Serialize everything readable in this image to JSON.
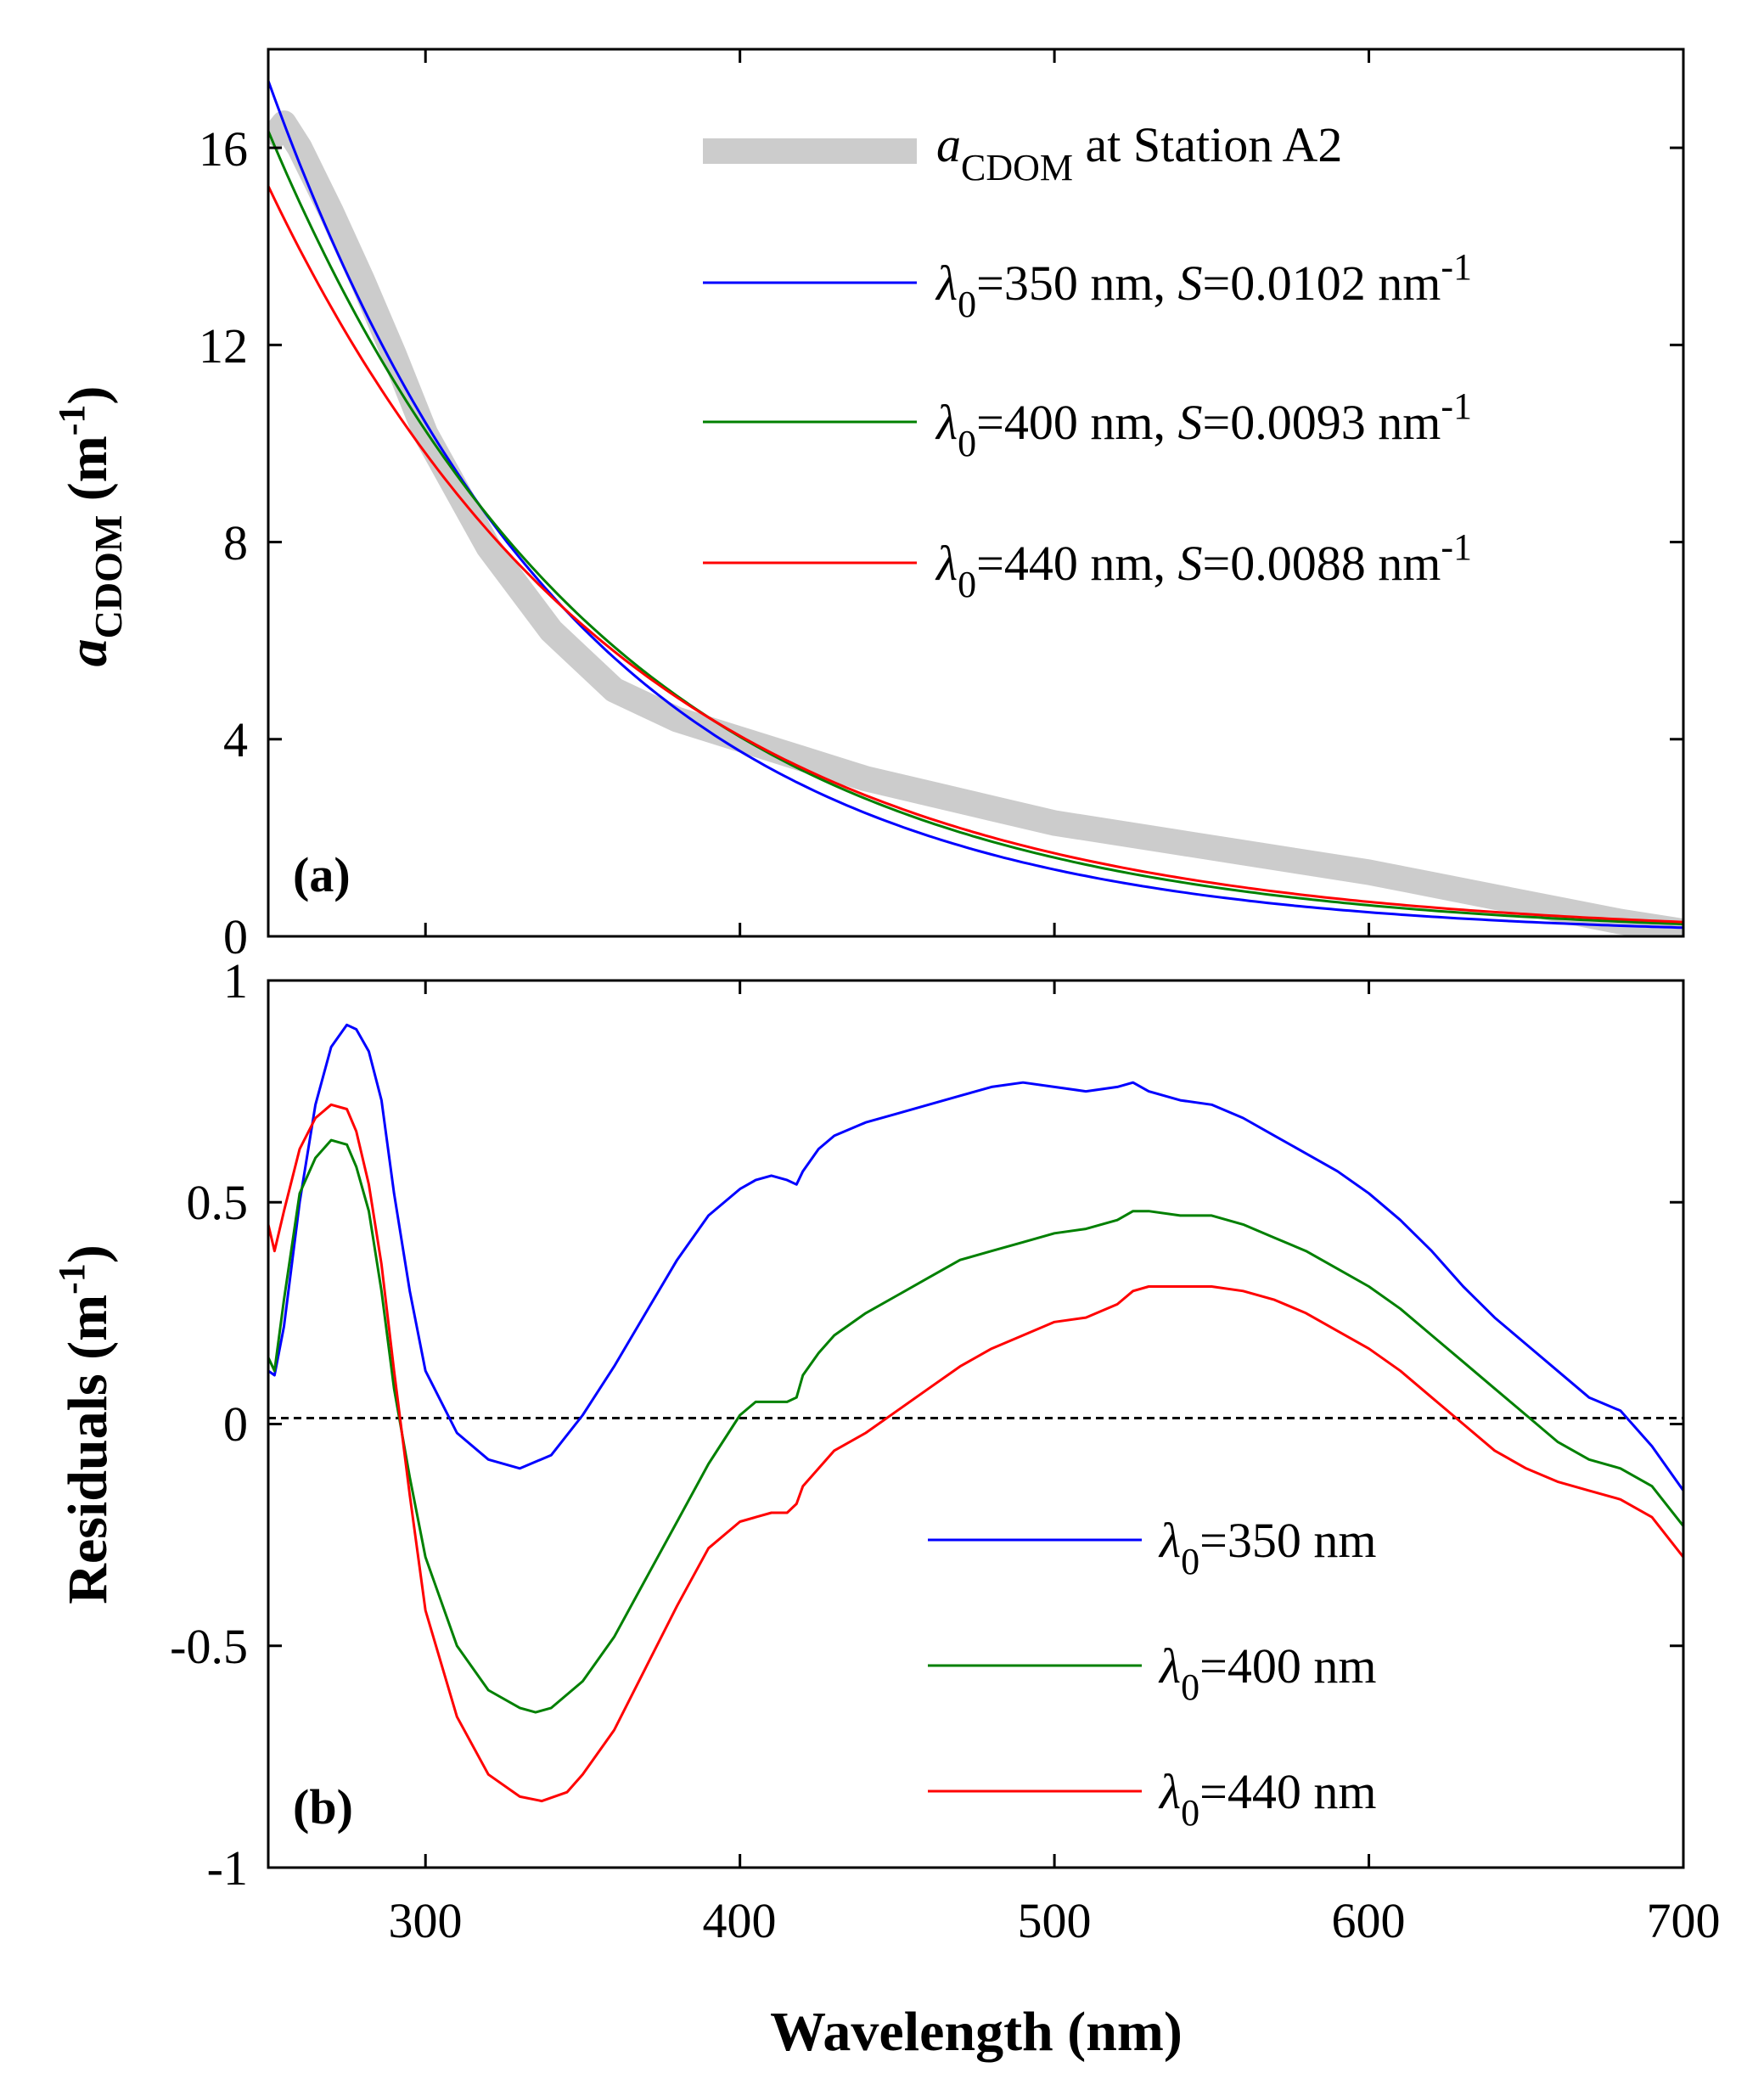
{
  "chart_data": [
    {
      "type": "line",
      "panel": "(a)",
      "title": "",
      "xlabel": "",
      "ylabel": {
        "main": "a",
        "sub": "CDOM",
        "unit_open": " (m",
        "unit_sup": "-1",
        "unit_close": ")"
      },
      "xlim": [
        250,
        700
      ],
      "ylim": [
        0,
        18
      ],
      "xticks": [
        300,
        400,
        500,
        600,
        700
      ],
      "yticks": [
        0,
        4,
        8,
        12,
        16
      ],
      "ytick_labels": [
        "0",
        "4",
        "8",
        "12",
        "16"
      ],
      "legend_position": "top-right",
      "series": [
        {
          "name": "aCDOM at Station A2",
          "label_main": "a",
          "label_sub": "CDOM",
          "label_rest": " at Station A2",
          "color": "#cccccc",
          "style": "thick-band",
          "x": [
            250,
            255,
            260,
            270,
            280,
            290,
            300,
            320,
            340,
            360,
            380,
            400,
            420,
            440,
            460,
            480,
            500,
            520,
            540,
            560,
            580,
            600,
            620,
            640,
            660,
            680,
            700
          ],
          "y": [
            16.1,
            16.5,
            16.0,
            14.7,
            13.3,
            11.8,
            10.2,
            7.9,
            6.2,
            5.0,
            4.4,
            4.0,
            3.6,
            3.2,
            2.9,
            2.6,
            2.3,
            2.1,
            1.9,
            1.7,
            1.5,
            1.3,
            1.05,
            0.8,
            0.55,
            0.3,
            0.1
          ]
        },
        {
          "name": "λ0=350 nm, S=0.0102 nm-1",
          "lambda": "350",
          "S": "0.0102",
          "color": "#0000ff",
          "model": {
            "l0": 350,
            "S": 0.0102,
            "Wl0": 6.26
          }
        },
        {
          "name": "λ0=400 nm, S=0.0093 nm-1",
          "lambda": "400",
          "S": "0.0093",
          "color": "#008000",
          "model": {
            "l0": 400,
            "S": 0.0093,
            "Wl0": 4.05
          }
        },
        {
          "name": "λ0=440 nm, S=0.0088 nm-1",
          "lambda": "440",
          "S": "0.0088",
          "color": "#ff0000",
          "model": {
            "l0": 440,
            "S": 0.0088,
            "Wl0": 2.86
          }
        }
      ]
    },
    {
      "type": "line",
      "panel": "(b)",
      "title": "",
      "xlabel": "Wavelength (nm)",
      "ylabel": {
        "main": "Residuals",
        "unit_open": " (m",
        "unit_sup": "-1",
        "unit_close": ")"
      },
      "xlim": [
        250,
        700
      ],
      "ylim": [
        -1,
        1
      ],
      "xticks": [
        300,
        400,
        500,
        600,
        700
      ],
      "xtick_labels": [
        "300",
        "400",
        "500",
        "600",
        "700"
      ],
      "yticks": [
        -1,
        -0.5,
        0,
        0.5,
        1
      ],
      "ytick_labels": [
        "-1",
        "-0.5",
        "0",
        "0.5",
        "1"
      ],
      "reference_line": {
        "y": 0,
        "style": "dashed",
        "color": "#000000"
      },
      "legend_position": "bottom-right",
      "series": [
        {
          "name": "λ0=350 nm",
          "lambda": "350",
          "color": "#0000ff",
          "x": [
            250,
            252,
            255,
            260,
            265,
            270,
            275,
            278,
            282,
            286,
            290,
            295,
            300,
            310,
            320,
            330,
            340,
            350,
            360,
            370,
            380,
            390,
            400,
            405,
            410,
            415,
            418,
            420,
            425,
            430,
            440,
            450,
            460,
            470,
            480,
            490,
            500,
            510,
            520,
            525,
            530,
            540,
            550,
            560,
            570,
            580,
            590,
            600,
            610,
            620,
            630,
            640,
            650,
            660,
            670,
            680,
            690,
            700
          ],
          "y": [
            0.12,
            0.11,
            0.22,
            0.5,
            0.72,
            0.85,
            0.9,
            0.89,
            0.84,
            0.73,
            0.52,
            0.3,
            0.12,
            -0.02,
            -0.08,
            -0.1,
            -0.07,
            0.02,
            0.13,
            0.25,
            0.37,
            0.47,
            0.53,
            0.55,
            0.56,
            0.55,
            0.54,
            0.57,
            0.62,
            0.65,
            0.68,
            0.7,
            0.72,
            0.74,
            0.76,
            0.77,
            0.76,
            0.75,
            0.76,
            0.77,
            0.75,
            0.73,
            0.72,
            0.69,
            0.65,
            0.61,
            0.57,
            0.52,
            0.46,
            0.39,
            0.31,
            0.24,
            0.18,
            0.12,
            0.06,
            0.03,
            -0.05,
            -0.15
          ]
        },
        {
          "name": "λ0=400 nm",
          "lambda": "400",
          "color": "#008000",
          "x": [
            250,
            252,
            255,
            260,
            265,
            270,
            275,
            278,
            282,
            286,
            290,
            295,
            300,
            310,
            320,
            330,
            335,
            340,
            350,
            360,
            370,
            380,
            390,
            400,
            405,
            410,
            415,
            418,
            420,
            425,
            430,
            440,
            450,
            460,
            470,
            480,
            490,
            500,
            510,
            520,
            525,
            530,
            540,
            550,
            560,
            570,
            580,
            590,
            600,
            610,
            620,
            630,
            640,
            650,
            660,
            670,
            680,
            690,
            700
          ],
          "y": [
            0.15,
            0.12,
            0.28,
            0.52,
            0.6,
            0.64,
            0.63,
            0.58,
            0.48,
            0.3,
            0.08,
            -0.12,
            -0.3,
            -0.5,
            -0.6,
            -0.64,
            -0.65,
            -0.64,
            -0.58,
            -0.48,
            -0.35,
            -0.22,
            -0.09,
            0.02,
            0.05,
            0.05,
            0.05,
            0.06,
            0.11,
            0.16,
            0.2,
            0.25,
            0.29,
            0.33,
            0.37,
            0.39,
            0.41,
            0.43,
            0.44,
            0.46,
            0.48,
            0.48,
            0.47,
            0.47,
            0.45,
            0.42,
            0.39,
            0.35,
            0.31,
            0.26,
            0.2,
            0.14,
            0.08,
            0.02,
            -0.04,
            -0.08,
            -0.1,
            -0.14,
            -0.23
          ]
        },
        {
          "name": "λ0=440 nm",
          "lambda": "440",
          "color": "#ff0000",
          "x": [
            250,
            252,
            255,
            260,
            265,
            270,
            275,
            278,
            282,
            286,
            290,
            295,
            300,
            310,
            320,
            330,
            337,
            345,
            350,
            360,
            370,
            380,
            390,
            400,
            405,
            410,
            415,
            418,
            420,
            425,
            430,
            440,
            450,
            460,
            470,
            480,
            490,
            500,
            510,
            520,
            525,
            530,
            540,
            550,
            560,
            570,
            580,
            590,
            600,
            610,
            620,
            630,
            640,
            650,
            660,
            670,
            680,
            690,
            700
          ],
          "y": [
            0.45,
            0.39,
            0.48,
            0.62,
            0.69,
            0.72,
            0.71,
            0.66,
            0.54,
            0.36,
            0.12,
            -0.16,
            -0.42,
            -0.66,
            -0.79,
            -0.84,
            -0.85,
            -0.83,
            -0.79,
            -0.69,
            -0.55,
            -0.41,
            -0.28,
            -0.22,
            -0.21,
            -0.2,
            -0.2,
            -0.18,
            -0.14,
            -0.1,
            -0.06,
            -0.02,
            0.03,
            0.08,
            0.13,
            0.17,
            0.2,
            0.23,
            0.24,
            0.27,
            0.3,
            0.31,
            0.31,
            0.31,
            0.3,
            0.28,
            0.25,
            0.21,
            0.17,
            0.12,
            0.06,
            0.0,
            -0.06,
            -0.1,
            -0.13,
            -0.15,
            -0.17,
            -0.21,
            -0.3
          ]
        }
      ]
    }
  ]
}
